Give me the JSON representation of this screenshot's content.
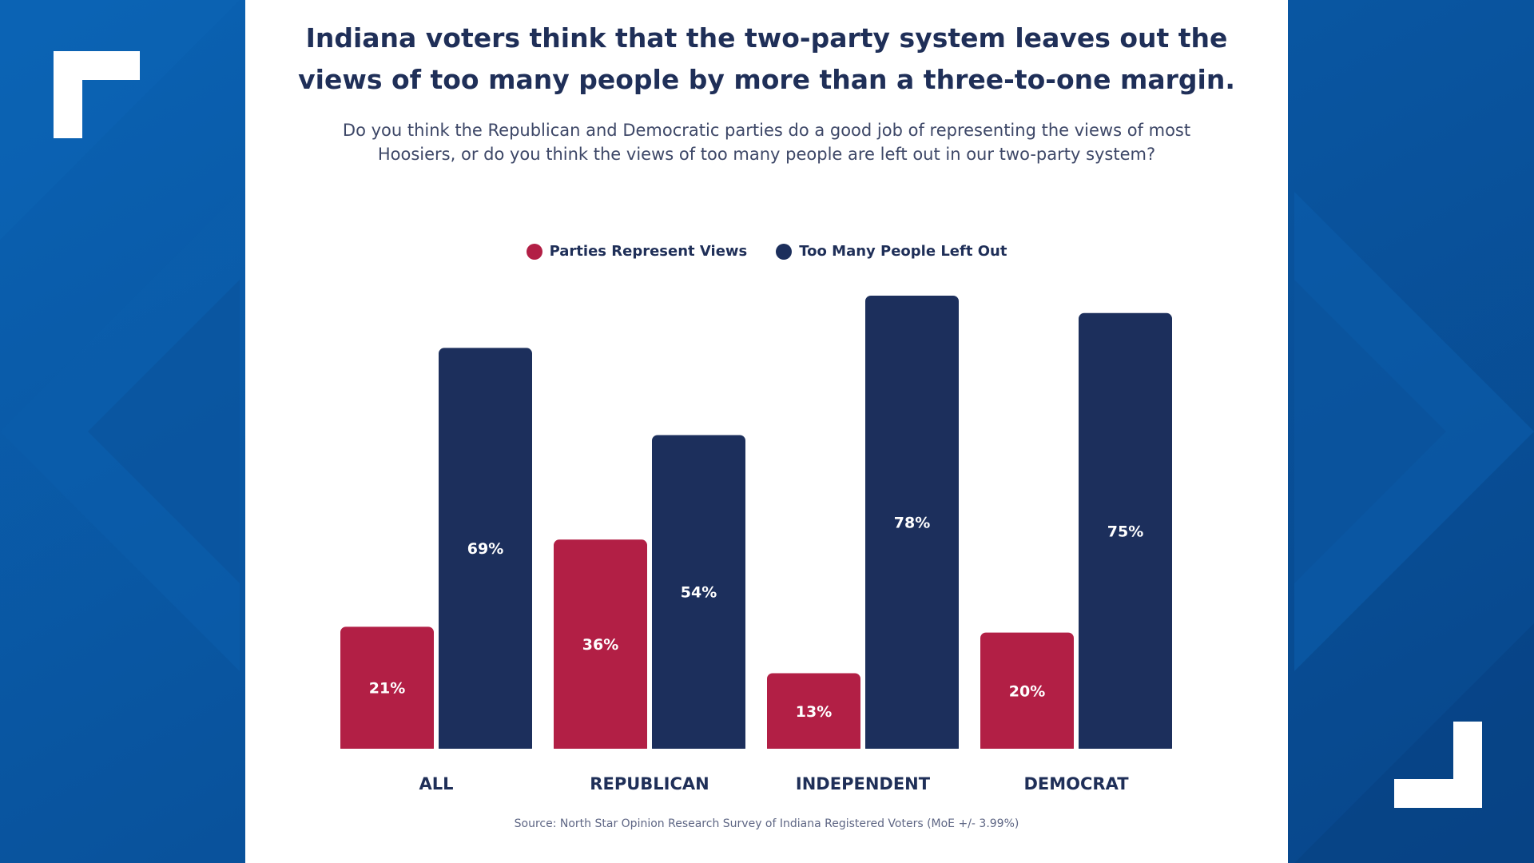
{
  "title_line1": "Indiana voters think that the two-party system leaves out the",
  "title_line2": "views of too many people by more than a three-to-one margin.",
  "subtitle_line1": "Do you think the Republican and Democratic parties do a good job of representing the views of most",
  "subtitle_line2": "Hoosiers, or do you think the views of too many people are left out in our two-party system?",
  "source": "Source: North Star Opinion Research Survey of Indiana Registered Voters (MoE +/- 3.99%)",
  "colors": {
    "background": "#0b58a4",
    "represent": "#b21f45",
    "left_out": "#1c2f5c",
    "text": "#1f2f58"
  },
  "chart_data": {
    "type": "bar",
    "categories": [
      "ALL",
      "REPUBLICAN",
      "INDEPENDENT",
      "DEMOCRAT"
    ],
    "series": [
      {
        "name": "Parties Represent Views",
        "values": [
          21,
          36,
          13,
          20
        ],
        "labels": [
          "21%",
          "36%",
          "13%",
          "20%"
        ],
        "color": "#b21f45"
      },
      {
        "name": "Too Many People Left Out",
        "values": [
          69,
          54,
          78,
          75
        ],
        "labels": [
          "69%",
          "54%",
          "78%",
          "75%"
        ],
        "color": "#1c2f5c"
      }
    ],
    "ylim": [
      0,
      78
    ],
    "grid": false,
    "legend_position": "top-center"
  }
}
